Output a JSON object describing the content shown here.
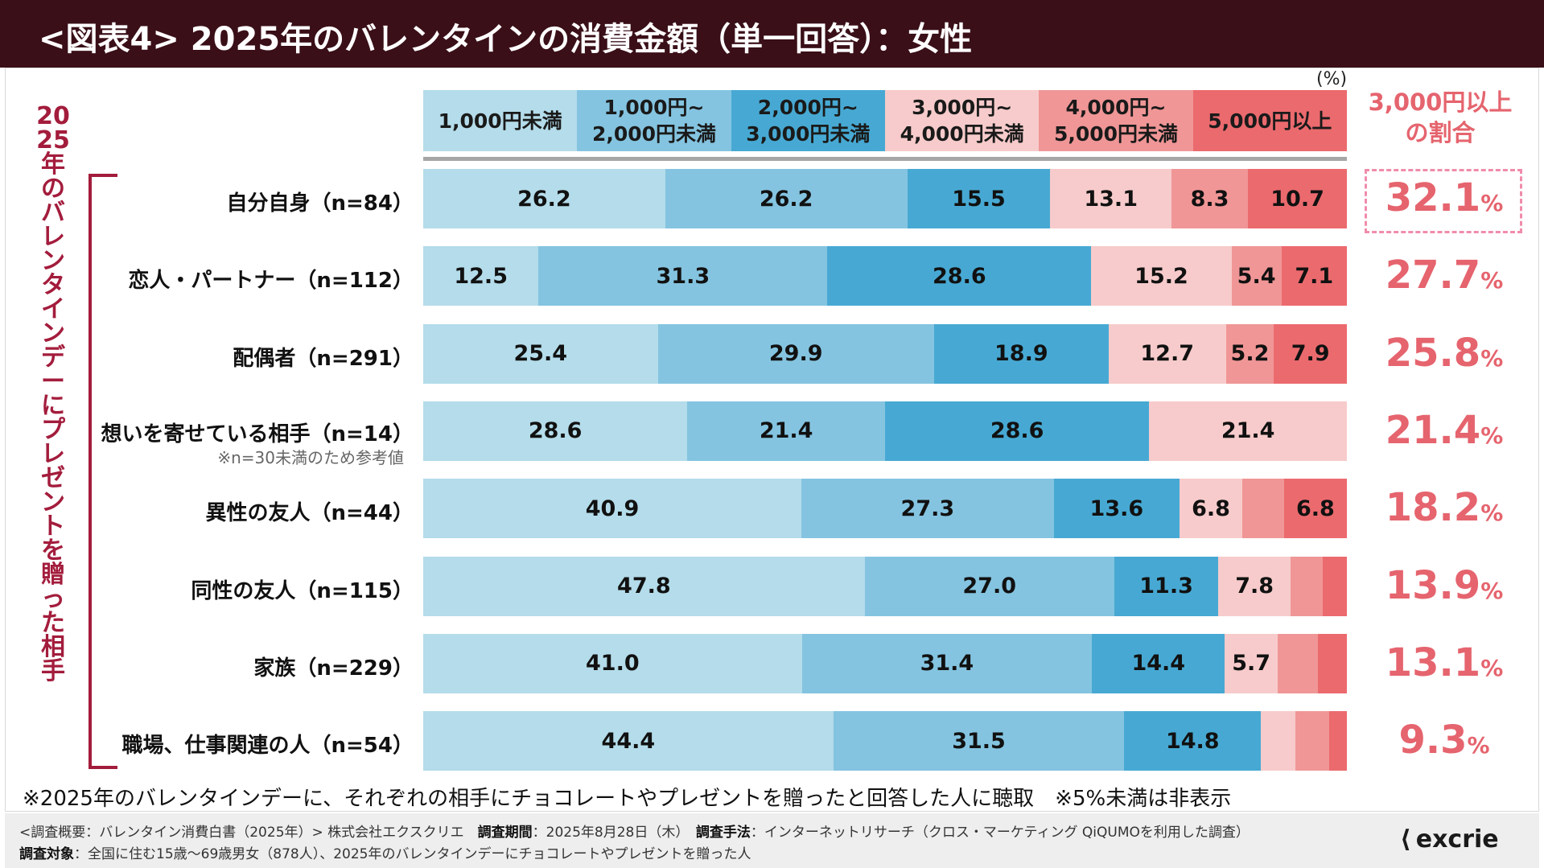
{
  "title": "<図表4> 2025年のバレンタインの消費金額（単一回答）：女性",
  "side_label": "2025年のバレンタインデーにプレゼントを贈った相手",
  "unit": "(%)",
  "share_header": "3,000円以上\nの割合",
  "footnote": "※2025年のバレンタインデーに、それぞれの相手にチョコレートやプレゼントを贈ったと回答した人に聴取　※5%未満は非表示",
  "footer": {
    "line1_a": "<調査概要：バレンタイン消費白書（2025年）> 株式会社エクスクリエ　",
    "line1_period_label": "調査期間",
    "line1_period": "：2025年8月28日（木）　",
    "line1_method_label": "調査手法",
    "line1_method": "：インターネットリサーチ（クロス・マーケティング QiQUMOを利用した調査）",
    "line2_target_label": "調査対象",
    "line2_target": "：全国に住む15歳～69歳男女（878人）、2025年のバレンタインデーにチョコレートやプレゼントを贈った人"
  },
  "logo": "excrie",
  "colors": {
    "header_bg": "#3a0f18",
    "accent": "#e5646e",
    "bracket": "#a31c3c",
    "segments": [
      "#b4dcea",
      "#84c4e0",
      "#47a9d3",
      "#f7cbcb",
      "#f09696",
      "#eb6a6e"
    ]
  },
  "chart_data": {
    "type": "bar",
    "orientation": "horizontal",
    "stacked": true,
    "title": "2025年のバレンタインの消費金額（単一回答）：女性",
    "xlabel": "",
    "ylabel": "2025年のバレンタインデーにプレゼントを贈った相手",
    "unit": "%",
    "label_threshold": 5,
    "legend": [
      "1,000円未満",
      "1,000円~\n2,000円未満",
      "2,000円~\n3,000円未満",
      "3,000円~\n4,000円未満",
      "4,000円~\n5,000円未満",
      "5,000円以上"
    ],
    "categories": [
      "自分自身（n=84）",
      "恋人・パートナー（n=112）",
      "配偶者（n=291）",
      "想いを寄せている相手（n=14）",
      "異性の友人（n=44）",
      "同性の友人（n=115）",
      "家族（n=229）",
      "職場、仕事関連の人（n=54）"
    ],
    "category_notes": [
      "",
      "",
      "",
      "※n=30未満のため参考値",
      "",
      "",
      "",
      ""
    ],
    "series": [
      {
        "name": "1,000円未満",
        "values": [
          26.2,
          12.5,
          25.4,
          28.6,
          40.9,
          47.8,
          41.0,
          44.4
        ]
      },
      {
        "name": "1,000円~2,000円未満",
        "values": [
          26.2,
          31.3,
          29.9,
          21.4,
          27.3,
          27.0,
          31.4,
          31.5
        ]
      },
      {
        "name": "2,000円~3,000円未満",
        "values": [
          15.5,
          28.6,
          18.9,
          28.6,
          13.6,
          11.3,
          14.4,
          14.8
        ]
      },
      {
        "name": "3,000円~4,000円未満",
        "values": [
          13.1,
          15.2,
          12.7,
          21.4,
          6.8,
          7.8,
          5.7,
          3.7
        ]
      },
      {
        "name": "4,000円~5,000円未満",
        "values": [
          8.3,
          5.4,
          5.2,
          0.0,
          4.5,
          3.5,
          4.4,
          3.7
        ]
      },
      {
        "name": "5,000円以上",
        "values": [
          10.7,
          7.1,
          7.9,
          0.0,
          6.8,
          2.6,
          3.1,
          1.9
        ]
      }
    ],
    "share_3000_plus": [
      "32.1",
      "27.7",
      "25.8",
      "21.4",
      "18.2",
      "13.9",
      "13.1",
      "9.3"
    ],
    "share_unit": "%",
    "highlight_index": 0
  }
}
